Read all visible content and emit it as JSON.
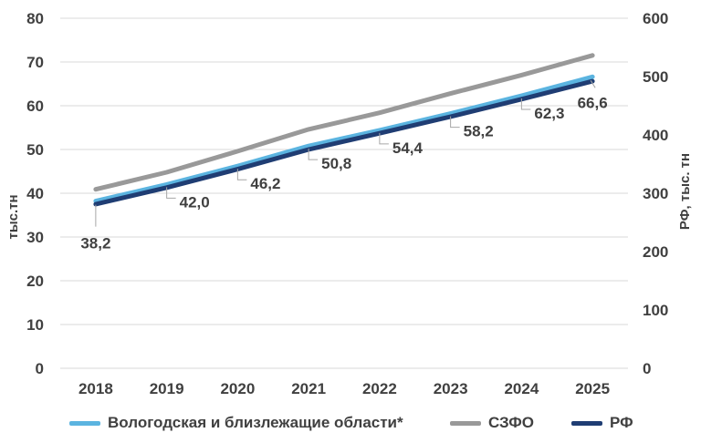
{
  "chart_data": {
    "type": "line",
    "categories": [
      "2018",
      "2019",
      "2020",
      "2021",
      "2022",
      "2023",
      "2024",
      "2025"
    ],
    "y_left": {
      "label": "тыс.тн",
      "range": [
        0,
        80
      ],
      "ticks": [
        "0",
        "10",
        "20",
        "30",
        "40",
        "50",
        "60",
        "70",
        "80"
      ]
    },
    "y_right": {
      "label": "РФ, тыс. тн",
      "range": [
        0,
        600
      ],
      "ticks": [
        "0",
        "100",
        "200",
        "300",
        "400",
        "500",
        "600"
      ]
    },
    "grid": true,
    "legend_position": "bottom",
    "series": [
      {
        "name": "Вологодская и близлежащие области*",
        "axis": "left",
        "color": "#5bb4e0",
        "values": [
          38.2,
          42.0,
          46.2,
          50.8,
          54.4,
          58.2,
          62.3,
          66.6
        ],
        "labels": [
          "38,2",
          "42,0",
          "46,2",
          "50,8",
          "54,4",
          "58,2",
          "62,3",
          "66,6"
        ]
      },
      {
        "name": "СЗФО",
        "axis": "left",
        "color": "#999999",
        "values": [
          40.9,
          44.8,
          49.6,
          54.6,
          58.4,
          62.8,
          67.0,
          71.5
        ]
      },
      {
        "name": "РФ",
        "axis": "left",
        "color": "#1f3d73",
        "values": [
          37.5,
          41.3,
          45.5,
          50.0,
          53.7,
          57.5,
          61.5,
          65.6
        ]
      }
    ]
  }
}
